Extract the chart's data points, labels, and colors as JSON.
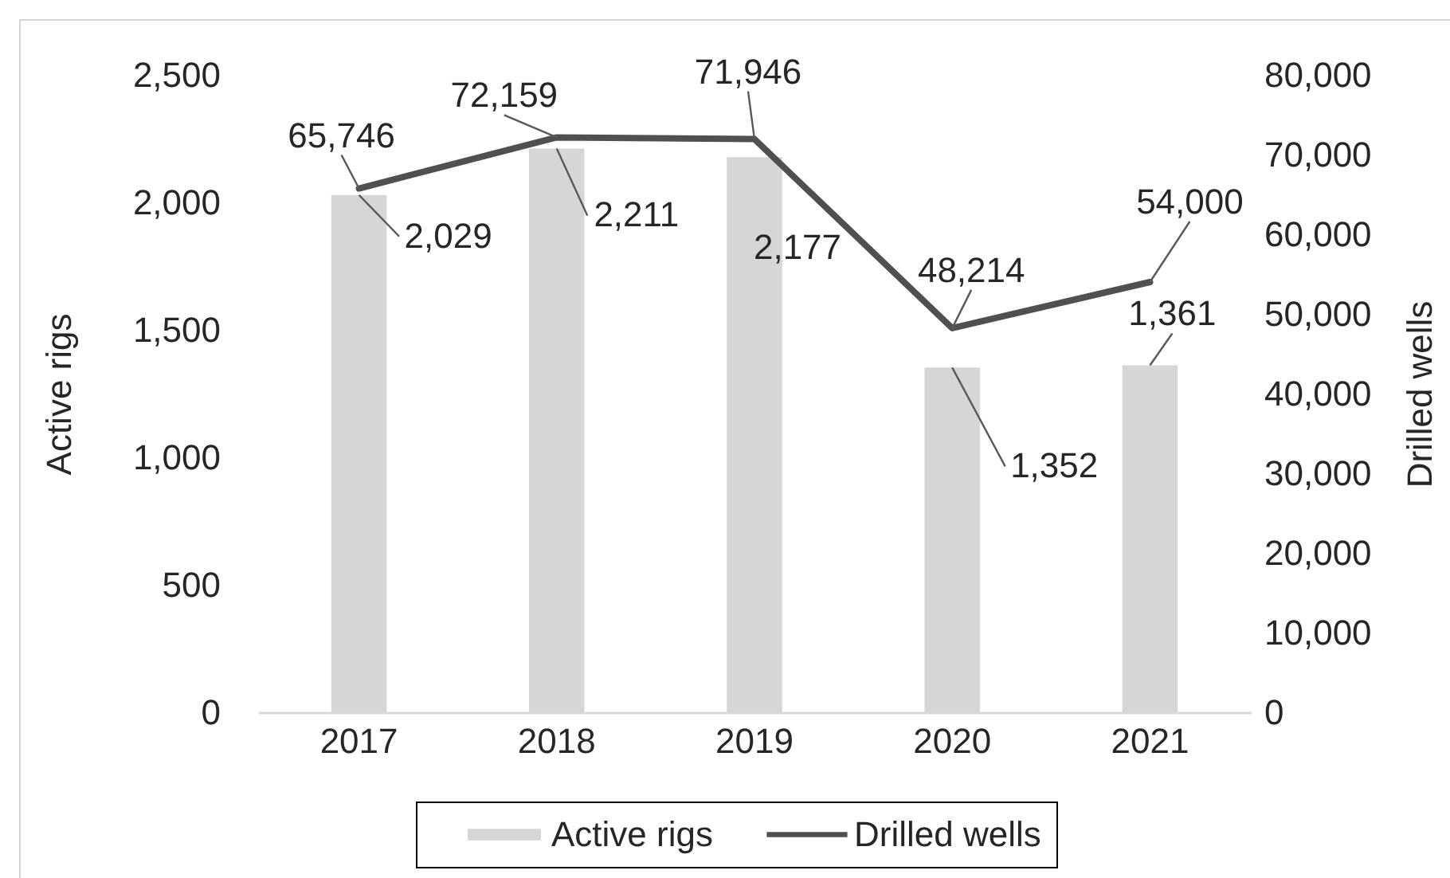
{
  "chart_data": {
    "type": "bar",
    "categories": [
      "2017",
      "2018",
      "2019",
      "2020",
      "2021"
    ],
    "ylabel": "Active rigs",
    "y2label": "Drilled wells",
    "series": [
      {
        "name": "Active rigs",
        "color": "#d6d6d6",
        "values": [
          2029,
          2211,
          2177,
          1352,
          1361
        ],
        "value_labels": [
          "2,029",
          "2,211",
          "2,177",
          "1,352",
          "1,361"
        ]
      },
      {
        "name": "Drilled wells",
        "type": "line",
        "axis": "y2",
        "color": "#505050",
        "values": [
          65746,
          72159,
          71946,
          48214,
          54000
        ],
        "value_labels": [
          "65,746",
          "72,159",
          "71,946",
          "48,214",
          "54,000"
        ]
      }
    ],
    "ylim": [
      0,
      2500
    ],
    "yticks": [
      0,
      500,
      {
        "value": 1000,
        "label": "1,000"
      },
      {
        "value": 1500,
        "label": "1,500"
      },
      {
        "value": 2000,
        "label": "2,000"
      },
      {
        "value": 2500,
        "label": "2,500"
      }
    ],
    "y2lim": [
      0,
      80000
    ],
    "y2ticks": [
      0,
      {
        "value": 10000,
        "label": "10,000"
      },
      {
        "value": 20000,
        "label": "20,000"
      },
      {
        "value": 30000,
        "label": "30,000"
      },
      {
        "value": 40000,
        "label": "40,000"
      },
      {
        "value": 50000,
        "label": "50,000"
      },
      {
        "value": 60000,
        "label": "60,000"
      },
      {
        "value": 70000,
        "label": "70,000"
      },
      {
        "value": 80000,
        "label": "80,000"
      }
    ],
    "legend": "bottom"
  }
}
